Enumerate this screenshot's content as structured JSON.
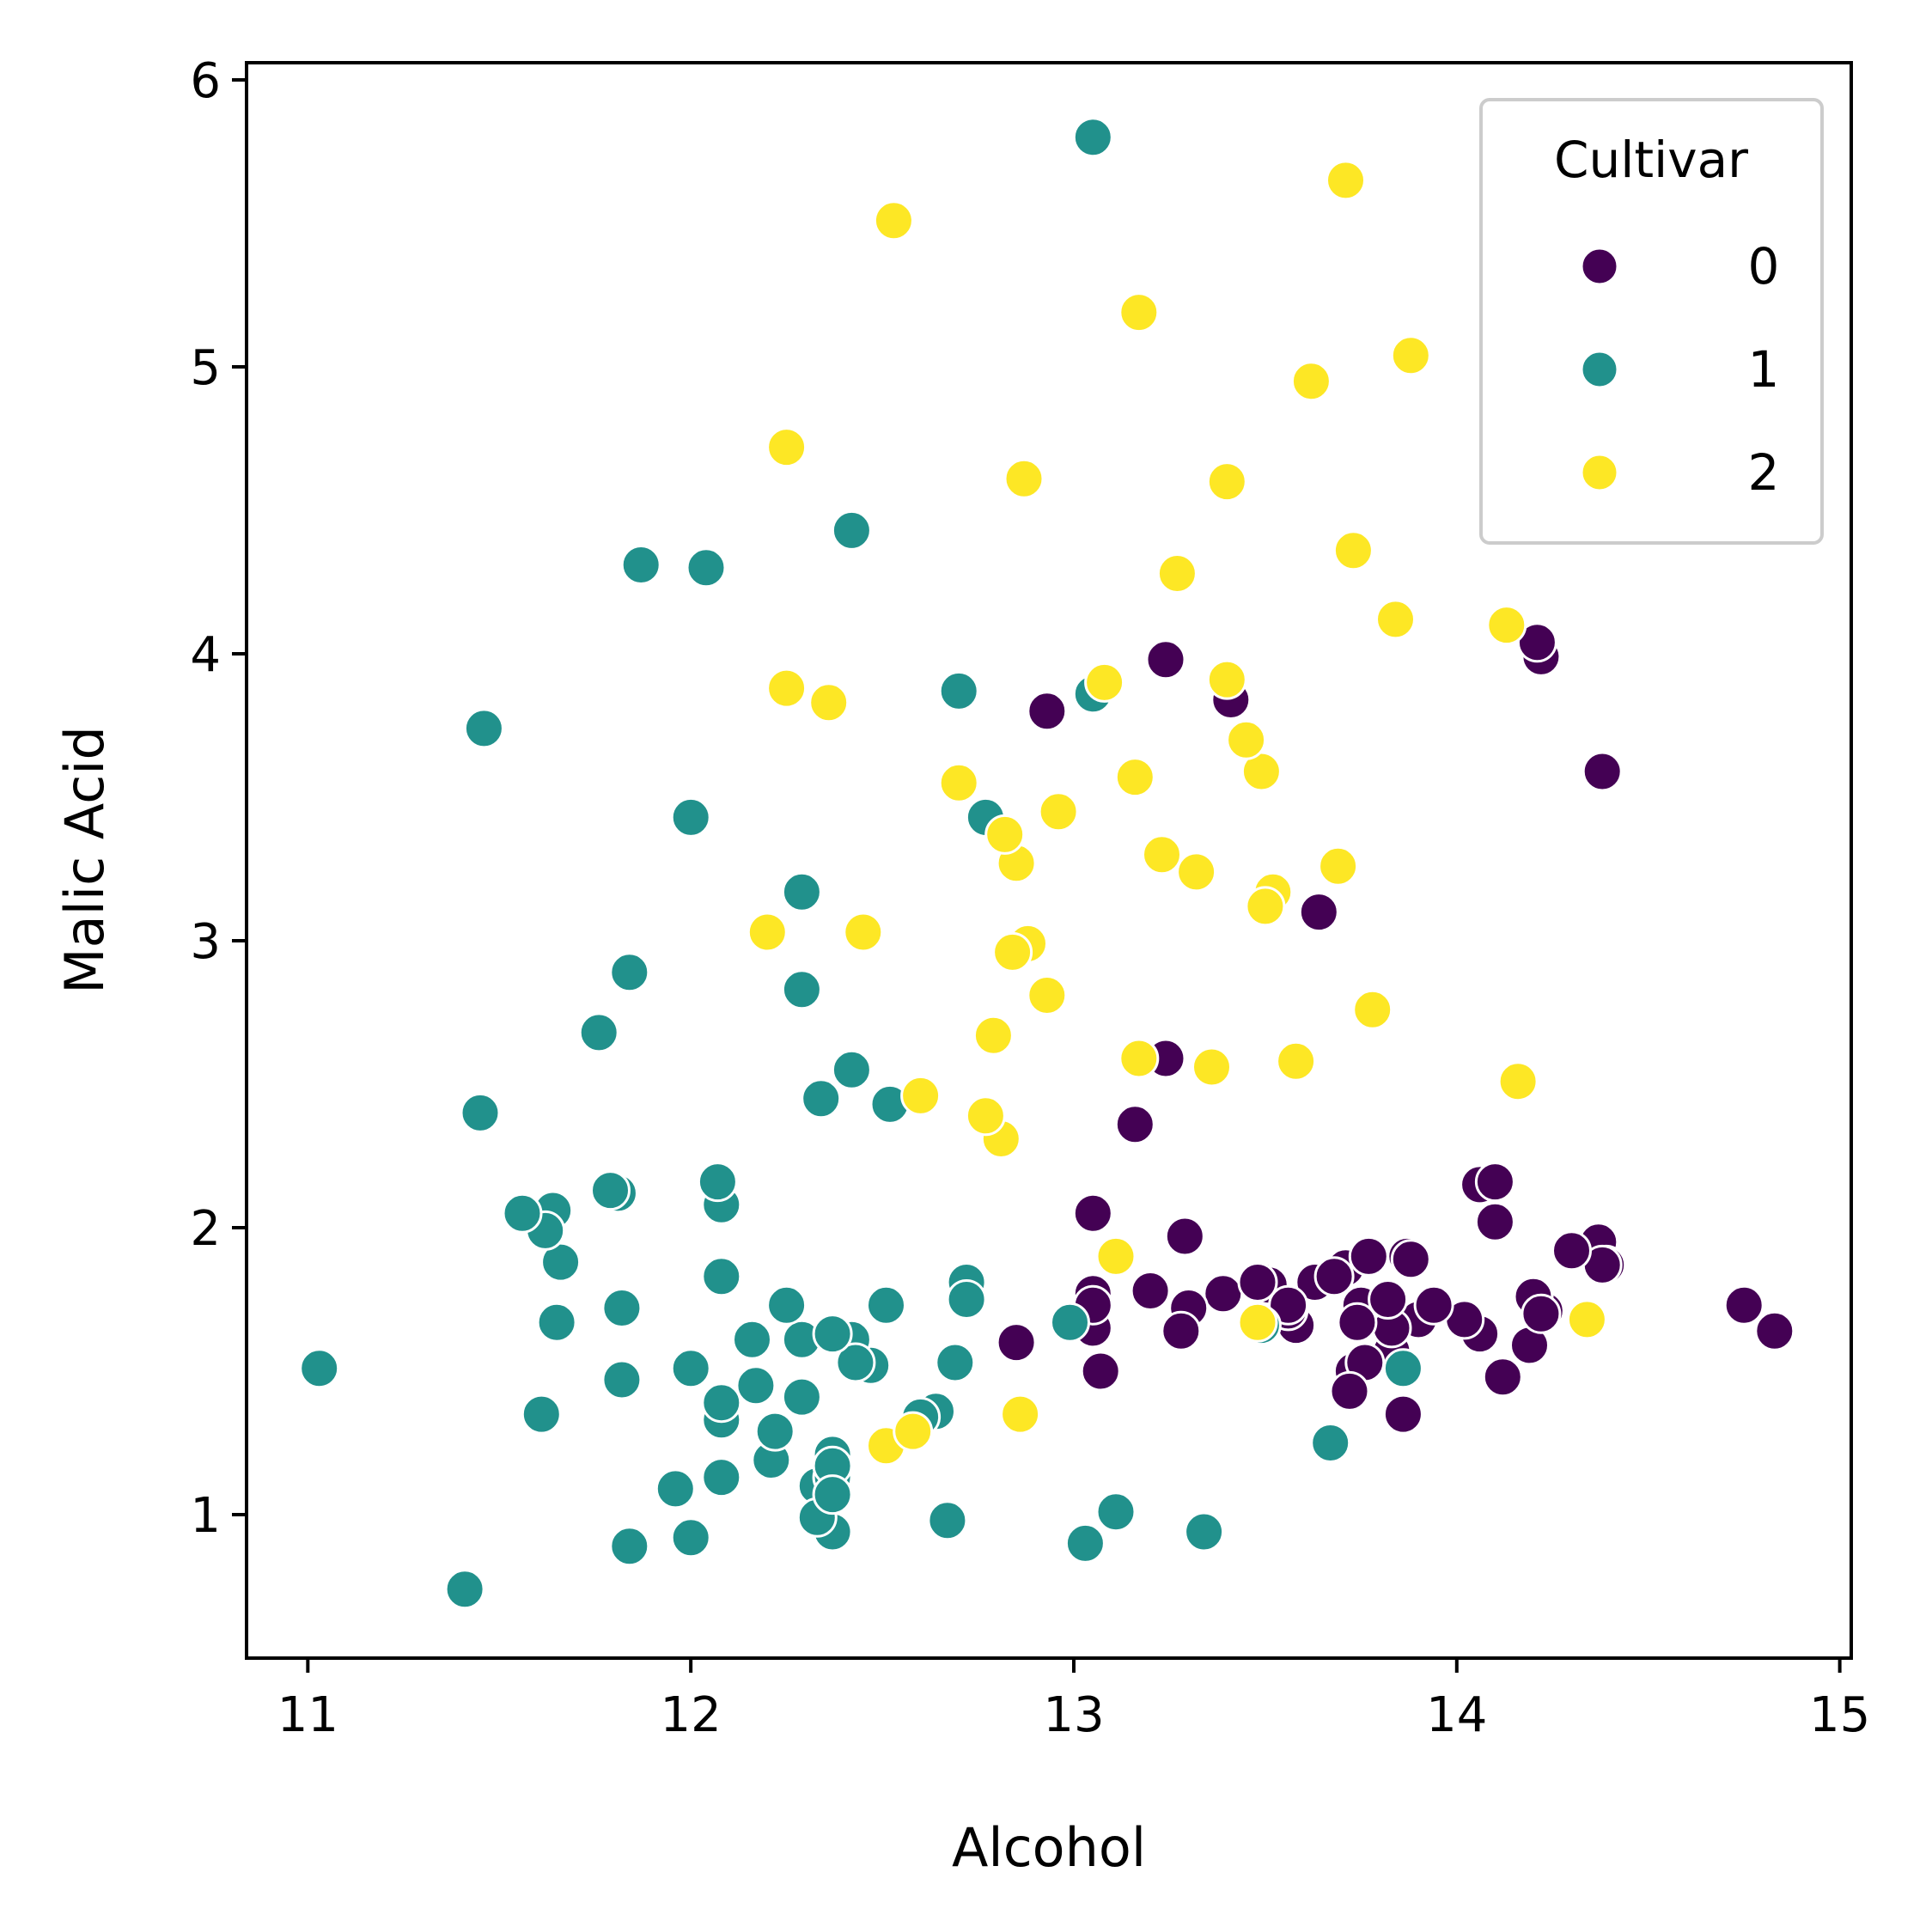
{
  "chart_data": {
    "type": "scatter",
    "xlabel": "Alcohol",
    "ylabel": "Malic Acid",
    "xlim": [
      10.84,
      15.03
    ],
    "ylim": [
      0.5,
      6.06
    ],
    "xticks": [
      11,
      12,
      13,
      14,
      15
    ],
    "yticks": [
      1,
      2,
      3,
      4,
      5,
      6
    ],
    "grid": false,
    "legend": {
      "title": "Cultivar",
      "placement": "top-right",
      "entries": [
        {
          "label": "0",
          "color": "#440154"
        },
        {
          "label": "1",
          "color": "#21918c"
        },
        {
          "label": "2",
          "color": "#fde725"
        }
      ]
    },
    "series": [
      {
        "name": "0",
        "color": "#440154",
        "points": [
          [
            14.23,
            1.71
          ],
          [
            13.2,
            1.78
          ],
          [
            13.16,
            2.36
          ],
          [
            14.37,
            1.95
          ],
          [
            13.24,
            2.59
          ],
          [
            14.2,
            1.76
          ],
          [
            14.39,
            1.87
          ],
          [
            14.06,
            2.15
          ],
          [
            14.83,
            1.64
          ],
          [
            13.86,
            1.35
          ],
          [
            14.1,
            2.16
          ],
          [
            14.12,
            1.48
          ],
          [
            13.75,
            1.73
          ],
          [
            14.75,
            1.73
          ],
          [
            14.38,
            1.87
          ],
          [
            13.63,
            1.81
          ],
          [
            14.3,
            1.92
          ],
          [
            13.83,
            1.57
          ],
          [
            14.19,
            1.59
          ],
          [
            13.64,
            3.1
          ],
          [
            14.06,
            1.63
          ],
          [
            12.93,
            3.8
          ],
          [
            13.71,
            1.86
          ],
          [
            12.85,
            1.6
          ],
          [
            13.5,
            1.81
          ],
          [
            13.05,
            2.05
          ],
          [
            13.39,
            1.77
          ],
          [
            13.3,
            1.72
          ],
          [
            13.87,
            1.9
          ],
          [
            14.02,
            1.68
          ],
          [
            13.73,
            1.5
          ],
          [
            13.58,
            1.66
          ],
          [
            13.68,
            1.83
          ],
          [
            13.76,
            1.53
          ],
          [
            13.51,
            1.8
          ],
          [
            13.48,
            1.81
          ],
          [
            13.28,
            1.64
          ],
          [
            13.05,
            1.65
          ],
          [
            13.07,
            1.5
          ],
          [
            14.22,
            3.99
          ],
          [
            13.56,
            1.71
          ],
          [
            13.41,
            3.84
          ],
          [
            13.88,
            1.89
          ],
          [
            13.24,
            3.98
          ],
          [
            13.05,
            1.77
          ],
          [
            14.21,
            4.04
          ],
          [
            14.38,
            3.59
          ],
          [
            13.9,
            1.68
          ],
          [
            14.1,
            2.02
          ],
          [
            13.94,
            1.73
          ],
          [
            13.05,
            1.73
          ],
          [
            13.83,
            1.65
          ],
          [
            13.82,
            1.75
          ],
          [
            13.77,
            1.9
          ],
          [
            13.74,
            1.67
          ],
          [
            13.56,
            1.73
          ],
          [
            14.22,
            1.7
          ],
          [
            13.29,
            1.97
          ],
          [
            13.72,
            1.43
          ]
        ]
      },
      {
        "name": "1",
        "color": "#21918c",
        "points": [
          [
            12.37,
            0.94
          ],
          [
            12.33,
            1.1
          ],
          [
            12.64,
            1.36
          ],
          [
            13.67,
            1.25
          ],
          [
            12.37,
            1.13
          ],
          [
            12.17,
            1.45
          ],
          [
            12.37,
            1.21
          ],
          [
            13.11,
            1.01
          ],
          [
            12.37,
            1.17
          ],
          [
            13.34,
            0.94
          ],
          [
            12.21,
            1.19
          ],
          [
            12.29,
            1.61
          ],
          [
            13.86,
            1.51
          ],
          [
            13.49,
            1.66
          ],
          [
            12.99,
            1.67
          ],
          [
            11.96,
            1.09
          ],
          [
            11.66,
            1.88
          ],
          [
            13.03,
            0.9
          ],
          [
            11.84,
            2.89
          ],
          [
            12.33,
            0.99
          ],
          [
            12.7,
            3.87
          ],
          [
            12.0,
            0.92
          ],
          [
            12.72,
            1.81
          ],
          [
            12.08,
            1.13
          ],
          [
            13.05,
            3.86
          ],
          [
            11.84,
            0.89
          ],
          [
            12.67,
            0.98
          ],
          [
            12.16,
            1.61
          ],
          [
            11.65,
            1.67
          ],
          [
            11.64,
            2.06
          ],
          [
            12.08,
            1.33
          ],
          [
            12.08,
            1.83
          ],
          [
            12.0,
            1.51
          ],
          [
            12.69,
            1.53
          ],
          [
            12.29,
            2.83
          ],
          [
            11.62,
            1.99
          ],
          [
            12.47,
            1.52
          ],
          [
            11.81,
            2.12
          ],
          [
            12.29,
            1.41
          ],
          [
            12.37,
            1.07
          ],
          [
            12.29,
            3.17
          ],
          [
            12.08,
            2.08
          ],
          [
            12.6,
            1.34
          ],
          [
            12.34,
            2.45
          ],
          [
            11.82,
            1.72
          ],
          [
            12.51,
            1.73
          ],
          [
            12.42,
            2.55
          ],
          [
            12.25,
            1.73
          ],
          [
            12.72,
            1.75
          ],
          [
            12.22,
            1.29
          ],
          [
            11.61,
            1.35
          ],
          [
            11.46,
            3.74
          ],
          [
            12.52,
            2.43
          ],
          [
            11.76,
            2.68
          ],
          [
            11.41,
            0.74
          ],
          [
            12.08,
            1.39
          ],
          [
            11.03,
            1.51
          ],
          [
            11.82,
            1.47
          ],
          [
            12.42,
            1.61
          ],
          [
            12.77,
            3.43
          ],
          [
            12.0,
            3.43
          ],
          [
            11.45,
            2.4
          ],
          [
            11.56,
            2.05
          ],
          [
            12.42,
            4.43
          ],
          [
            13.05,
            5.8
          ],
          [
            11.87,
            4.31
          ],
          [
            12.07,
            2.16
          ],
          [
            12.43,
            1.53
          ],
          [
            11.79,
            2.13
          ],
          [
            12.37,
            1.63
          ],
          [
            12.04,
            4.3
          ]
        ]
      },
      {
        "name": "2",
        "color": "#fde725",
        "points": [
          [
            12.86,
            1.35
          ],
          [
            12.88,
            2.99
          ],
          [
            12.81,
            2.31
          ],
          [
            12.7,
            3.55
          ],
          [
            12.51,
            1.24
          ],
          [
            12.6,
            2.46
          ],
          [
            12.25,
            4.72
          ],
          [
            12.53,
            5.51
          ],
          [
            13.49,
            3.59
          ],
          [
            12.84,
            2.96
          ],
          [
            12.93,
            2.81
          ],
          [
            13.36,
            2.56
          ],
          [
            13.52,
            3.17
          ],
          [
            13.62,
            4.95
          ],
          [
            12.25,
            3.88
          ],
          [
            13.16,
            3.57
          ],
          [
            13.88,
            5.04
          ],
          [
            12.87,
            4.61
          ],
          [
            13.32,
            3.24
          ],
          [
            13.08,
            3.9
          ],
          [
            13.5,
            3.12
          ],
          [
            12.79,
            2.67
          ],
          [
            13.11,
            1.9
          ],
          [
            13.23,
            3.3
          ],
          [
            12.58,
            1.29
          ],
          [
            13.17,
            5.19
          ],
          [
            13.84,
            4.12
          ],
          [
            12.45,
            3.03
          ],
          [
            14.34,
            1.68
          ],
          [
            13.48,
            1.67
          ],
          [
            12.36,
            3.83
          ],
          [
            13.69,
            3.26
          ],
          [
            12.85,
            3.27
          ],
          [
            12.96,
            3.45
          ],
          [
            13.78,
            2.76
          ],
          [
            13.73,
            4.36
          ],
          [
            13.45,
            3.7
          ],
          [
            12.82,
            3.37
          ],
          [
            13.58,
            2.58
          ],
          [
            13.4,
            4.6
          ],
          [
            12.2,
            3.03
          ],
          [
            12.77,
            2.39
          ],
          [
            14.16,
            2.51
          ],
          [
            13.71,
            5.65
          ],
          [
            13.4,
            3.91
          ],
          [
            13.27,
            4.28
          ],
          [
            13.17,
            2.59
          ],
          [
            14.13,
            4.1
          ]
        ]
      }
    ]
  }
}
